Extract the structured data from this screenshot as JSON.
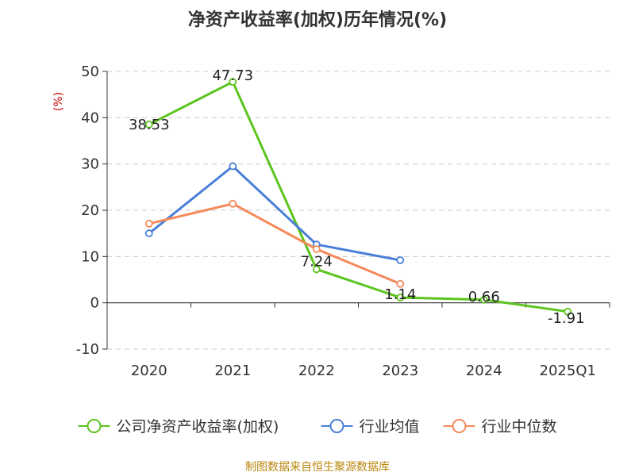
{
  "chart_data": {
    "type": "line",
    "title": "净资产收益率(加权)历年情况(%)",
    "ylabel": "(%)",
    "xlabel": "",
    "categories": [
      "2020",
      "2021",
      "2022",
      "2023",
      "2024",
      "2025Q1"
    ],
    "ylim": [
      -10,
      50
    ],
    "yticks": [
      50,
      40,
      30,
      20,
      10,
      0,
      -10
    ],
    "grid": true,
    "legend_position": "bottom",
    "series": [
      {
        "name": "公司净资产收益率(加权)",
        "color": "#5cc41e",
        "values": [
          38.53,
          47.73,
          7.24,
          1.14,
          0.66,
          -1.91
        ],
        "labels": [
          "38.53",
          "47.73",
          "7.24",
          "1.14",
          "0.66",
          "-1.91"
        ]
      },
      {
        "name": "行业均值",
        "color": "#4a7fd9",
        "values": [
          15.0,
          29.5,
          12.6,
          9.2,
          null,
          null
        ]
      },
      {
        "name": "行业中位数",
        "color": "#f5895a",
        "values": [
          17.1,
          21.4,
          11.6,
          4.1,
          null,
          null
        ]
      }
    ]
  },
  "source_text": "制图数据来自恒生聚源数据库"
}
